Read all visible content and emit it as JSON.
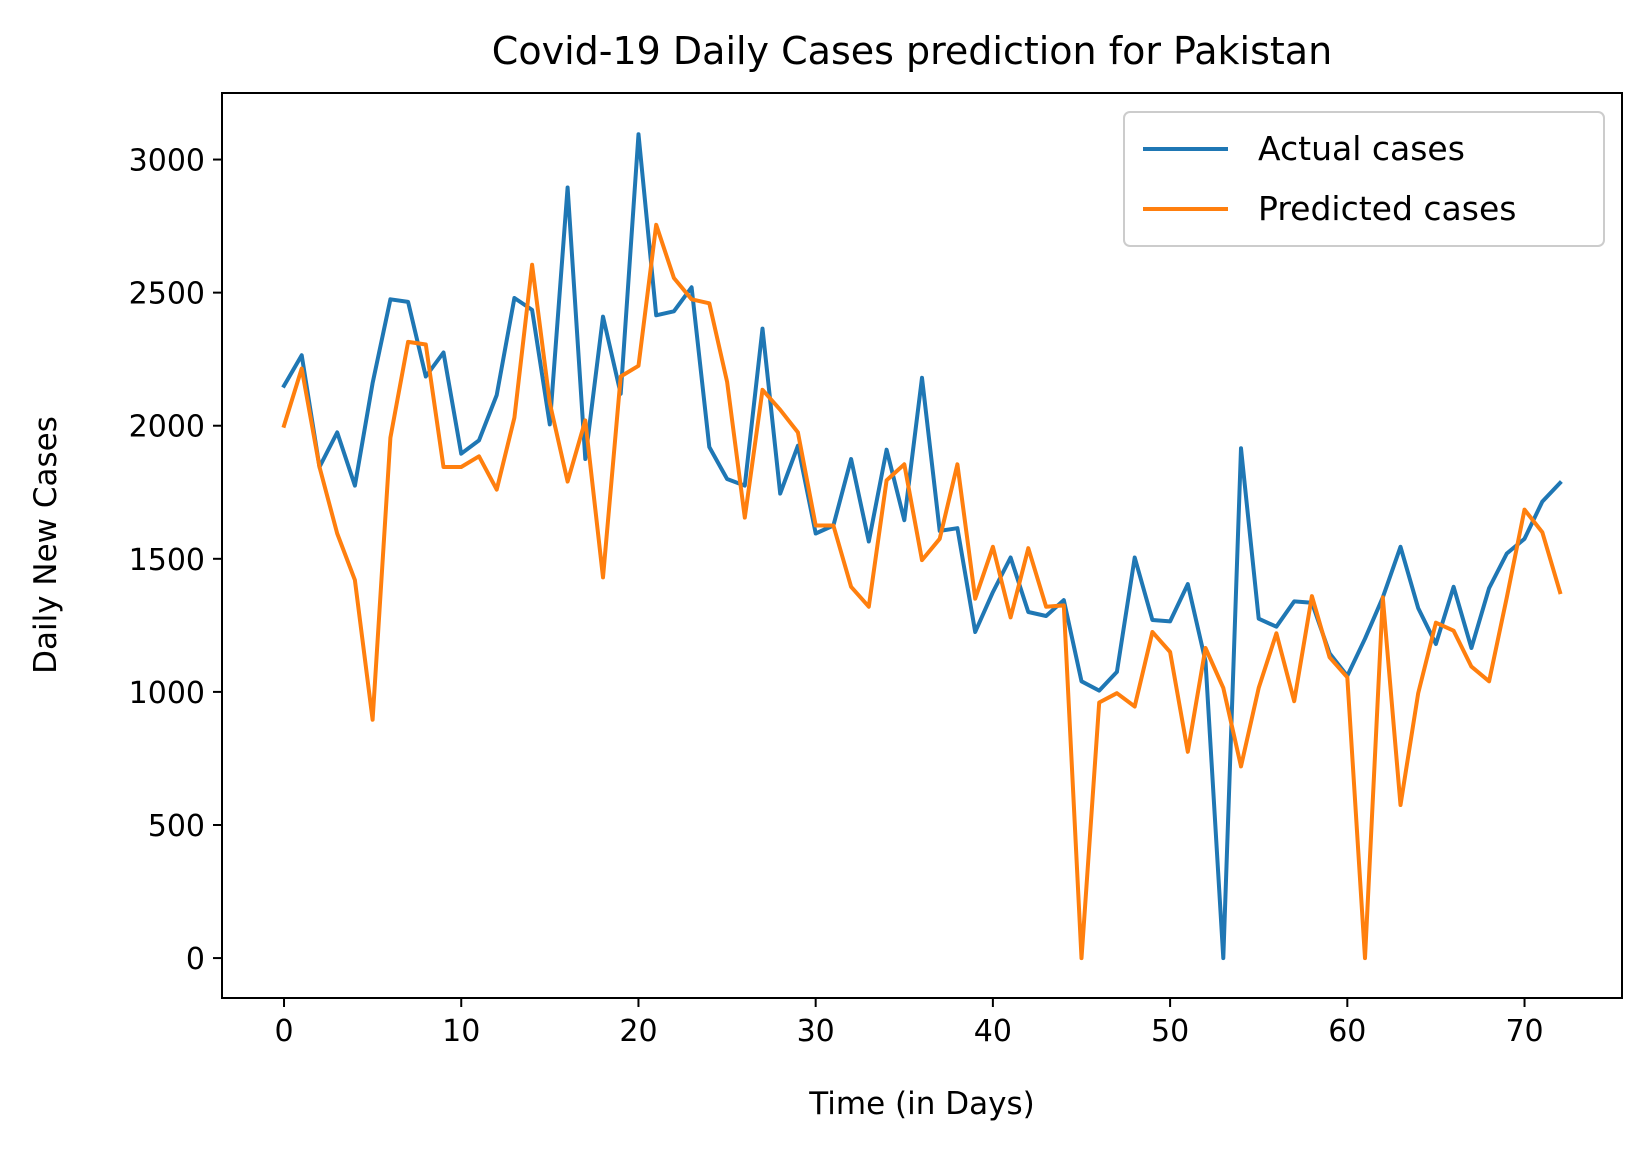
{
  "chart_data": {
    "type": "line",
    "title": "Covid-19 Daily Cases prediction for Pakistan",
    "xlabel": "Time (in Days)",
    "ylabel": "Daily New Cases",
    "xlim": [
      -3.5,
      75.5
    ],
    "ylim": [
      -150,
      3250
    ],
    "xticks": [
      0,
      10,
      20,
      30,
      40,
      50,
      60,
      70
    ],
    "yticks": [
      0,
      500,
      1000,
      1500,
      2000,
      2500,
      3000
    ],
    "xtick_labels": [
      "0",
      "10",
      "20",
      "30",
      "40",
      "50",
      "60",
      "70"
    ],
    "ytick_labels": [
      "0",
      "500",
      "1000",
      "1500",
      "2000",
      "2500",
      "3000"
    ],
    "legend_position": "top-right",
    "grid": false,
    "x": [
      0,
      1,
      2,
      3,
      4,
      5,
      6,
      7,
      8,
      9,
      10,
      11,
      12,
      13,
      14,
      15,
      16,
      17,
      18,
      19,
      20,
      21,
      22,
      23,
      24,
      25,
      26,
      27,
      28,
      29,
      30,
      31,
      32,
      33,
      34,
      35,
      36,
      37,
      38,
      39,
      40,
      41,
      42,
      43,
      44,
      45,
      46,
      47,
      48,
      49,
      50,
      51,
      52,
      53,
      54,
      55,
      56,
      57,
      58,
      59,
      60,
      61,
      62,
      63,
      64,
      65,
      66,
      67,
      68,
      69,
      70,
      71,
      72
    ],
    "series": [
      {
        "name": "Actual cases",
        "color": "#1f77b4",
        "values": [
          2150,
          2265,
          1845,
          1975,
          1775,
          2160,
          2475,
          2465,
          2185,
          2275,
          1895,
          1945,
          2115,
          2480,
          2435,
          2005,
          2895,
          1875,
          2410,
          2120,
          3095,
          2415,
          2430,
          2520,
          1920,
          1800,
          1775,
          2365,
          1745,
          1925,
          1595,
          1625,
          1875,
          1565,
          1910,
          1645,
          2180,
          1605,
          1615,
          1225,
          1375,
          1505,
          1300,
          1285,
          1345,
          1040,
          1005,
          1075,
          1505,
          1270,
          1265,
          1405,
          1115,
          0,
          1915,
          1275,
          1245,
          1340,
          1335,
          1145,
          1060,
          1200,
          1355,
          1545,
          1315,
          1180,
          1395,
          1165,
          1390,
          1520,
          1575,
          1715,
          1785
        ]
      },
      {
        "name": "Predicted cases",
        "color": "#ff7f0e",
        "values": [
          2000,
          2215,
          1845,
          1595,
          1420,
          895,
          1955,
          2315,
          2305,
          1845,
          1845,
          1885,
          1760,
          2030,
          2605,
          2085,
          1790,
          2020,
          1430,
          2185,
          2225,
          2755,
          2555,
          2475,
          2460,
          2165,
          1655,
          2135,
          2060,
          1975,
          1625,
          1625,
          1395,
          1320,
          1795,
          1855,
          1495,
          1575,
          1855,
          1350,
          1545,
          1280,
          1540,
          1320,
          1325,
          0,
          960,
          995,
          945,
          1225,
          1150,
          775,
          1165,
          1015,
          720,
          1015,
          1220,
          965,
          1360,
          1130,
          1055,
          0,
          1355,
          575,
          995,
          1260,
          1230,
          1095,
          1040,
          1355,
          1685,
          1600,
          1375
        ]
      }
    ]
  }
}
